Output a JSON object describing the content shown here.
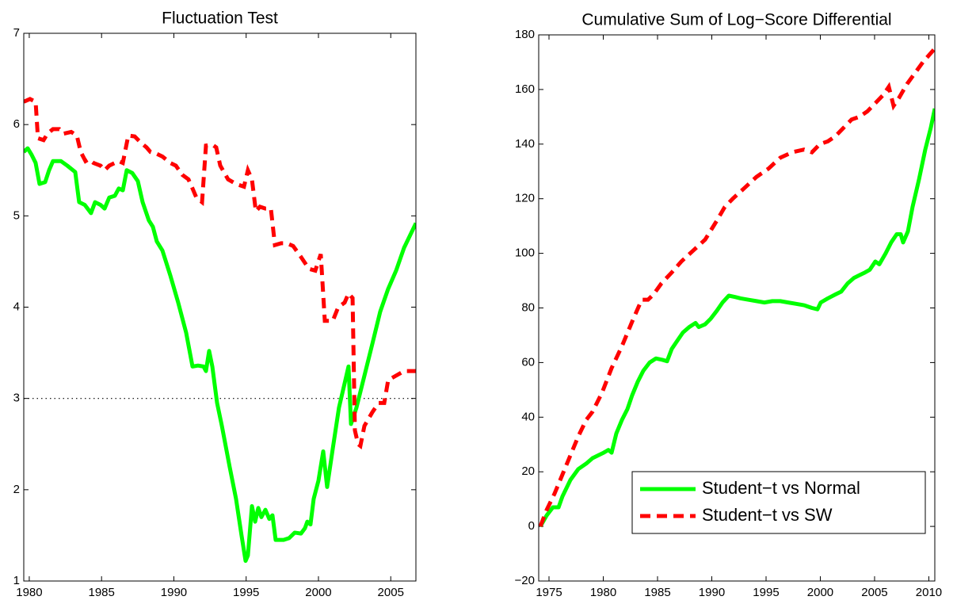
{
  "chart_data": [
    {
      "type": "line",
      "title": "Fluctuation Test",
      "xlim": [
        1979.62,
        2006.74
      ],
      "xticks": [
        1980,
        1985,
        1990,
        1995,
        2000,
        2005
      ],
      "ylim": [
        1,
        7
      ],
      "yticks": [
        1,
        2,
        3,
        4,
        5,
        6,
        7
      ],
      "hline": 3,
      "series": [
        {
          "name": "Student−t vs Normal",
          "color": "#00ff00",
          "style": "solid",
          "x": [
            1979.62,
            1979.89,
            1980.16,
            1980.44,
            1980.71,
            1981.1,
            1981.37,
            1981.64,
            1982.19,
            1982.63,
            1983.18,
            1983.45,
            1983.84,
            1984.27,
            1984.55,
            1984.93,
            1985.21,
            1985.53,
            1985.92,
            1986.19,
            1986.47,
            1986.74,
            1987.12,
            1987.51,
            1987.84,
            1988.27,
            1988.55,
            1988.82,
            1989.21,
            1989.75,
            1990.3,
            1990.85,
            1991.29,
            1991.67,
            1992.05,
            1992.22,
            1992.44,
            1992.66,
            1992.99,
            1993.32,
            1993.86,
            1994.3,
            1994.68,
            1994.96,
            1995.12,
            1995.4,
            1995.62,
            1995.84,
            1996.05,
            1996.33,
            1996.6,
            1996.82,
            1997.04,
            1997.59,
            1997.97,
            1998.36,
            1998.79,
            1999.07,
            1999.23,
            1999.45,
            1999.67,
            2000.0,
            2000.33,
            2000.6,
            2000.99,
            2001.42,
            2001.86,
            2002.08,
            2002.25,
            2002.63,
            2003.18,
            2003.73,
            2004.27,
            2004.82,
            2005.37,
            2005.92,
            2006.74
          ],
          "values": [
            5.7,
            5.74,
            5.67,
            5.58,
            5.35,
            5.37,
            5.5,
            5.6,
            5.6,
            5.55,
            5.48,
            5.15,
            5.12,
            5.03,
            5.15,
            5.12,
            5.08,
            5.2,
            5.22,
            5.3,
            5.28,
            5.5,
            5.47,
            5.38,
            5.15,
            4.95,
            4.88,
            4.72,
            4.62,
            4.35,
            4.05,
            3.72,
            3.35,
            3.36,
            3.35,
            3.3,
            3.52,
            3.35,
            2.95,
            2.7,
            2.25,
            1.9,
            1.5,
            1.22,
            1.28,
            1.82,
            1.65,
            1.8,
            1.7,
            1.78,
            1.68,
            1.72,
            1.45,
            1.45,
            1.47,
            1.53,
            1.52,
            1.58,
            1.65,
            1.62,
            1.9,
            2.1,
            2.42,
            2.03,
            2.45,
            2.9,
            3.2,
            3.35,
            2.72,
            2.9,
            3.25,
            3.6,
            3.95,
            4.2,
            4.4,
            4.65,
            4.92
          ]
        },
        {
          "name": "Student−t vs SW",
          "color": "#ff0000",
          "style": "dashed",
          "x": [
            1979.62,
            1980.05,
            1980.44,
            1980.6,
            1980.99,
            1981.26,
            1981.64,
            1982.08,
            1982.36,
            1982.9,
            1983.29,
            1983.56,
            1983.89,
            1984.11,
            1984.44,
            1984.93,
            1985.21,
            1985.53,
            1985.92,
            1986.19,
            1986.47,
            1986.85,
            1987.29,
            1987.73,
            1988.11,
            1988.38,
            1988.82,
            1989.21,
            1989.75,
            1990.14,
            1990.58,
            1991.01,
            1991.29,
            1991.56,
            1991.95,
            1992.22,
            1992.66,
            1992.93,
            1993.21,
            1993.75,
            1994.3,
            1994.85,
            1995.12,
            1995.4,
            1995.67,
            1995.95,
            1996.33,
            1996.71,
            1996.99,
            1997.42,
            1997.81,
            1998.25,
            1998.79,
            1999.34,
            1999.78,
            2000.16,
            2000.44,
            2000.99,
            2001.37,
            2001.81,
            2002.08,
            2002.36,
            2002.52,
            2002.74,
            2002.9,
            2003.18,
            2003.73,
            2004.16,
            2004.55,
            2004.82,
            2005.37,
            2005.92,
            2006.74
          ],
          "values": [
            6.25,
            6.28,
            6.25,
            5.85,
            5.83,
            5.9,
            5.95,
            5.95,
            5.9,
            5.92,
            5.88,
            5.7,
            5.6,
            5.62,
            5.58,
            5.55,
            5.5,
            5.55,
            5.58,
            5.6,
            5.58,
            5.88,
            5.87,
            5.8,
            5.75,
            5.7,
            5.68,
            5.65,
            5.58,
            5.55,
            5.45,
            5.4,
            5.3,
            5.2,
            5.15,
            5.77,
            5.78,
            5.75,
            5.55,
            5.4,
            5.35,
            5.32,
            5.5,
            5.4,
            5.05,
            5.1,
            5.08,
            5.08,
            4.68,
            4.7,
            4.7,
            4.67,
            4.55,
            4.42,
            4.4,
            4.58,
            3.85,
            3.85,
            4.0,
            4.05,
            4.15,
            4.1,
            2.65,
            2.5,
            2.48,
            2.7,
            2.85,
            2.95,
            2.95,
            3.2,
            3.25,
            3.3,
            3.3
          ]
        }
      ]
    },
    {
      "type": "line",
      "title": "Cumulative Sum of Log−Score Differential",
      "xlim": [
        1974.05,
        2010.55
      ],
      "xticks": [
        1975,
        1980,
        1985,
        1990,
        1995,
        2000,
        2005,
        2010
      ],
      "ylim": [
        -20,
        180
      ],
      "yticks": [
        {
          "value": -20,
          "label": "−20"
        },
        0,
        20,
        40,
        60,
        80,
        100,
        120,
        140,
        160,
        180
      ],
      "legend": "lower right",
      "series": [
        {
          "name": "Student−t vs Normal",
          "color": "#00ff00",
          "style": "solid",
          "x": [
            1974.2,
            1974.78,
            1975.36,
            1975.88,
            1976.24,
            1976.97,
            1977.7,
            1978.43,
            1979.01,
            1979.53,
            1980.04,
            1980.47,
            1980.77,
            1981.2,
            1981.72,
            1982.23,
            1982.66,
            1983.18,
            1983.69,
            1984.27,
            1984.85,
            1985.44,
            1985.88,
            1986.31,
            1986.82,
            1987.34,
            1987.92,
            1988.5,
            1988.8,
            1989.38,
            1989.89,
            1990.47,
            1990.99,
            1991.57,
            1992.15,
            1992.66,
            1993.39,
            1994.12,
            1994.85,
            1995.58,
            1996.31,
            1997.04,
            1997.77,
            1998.5,
            1999.23,
            1999.74,
            2000.04,
            2000.69,
            2001.42,
            2001.93,
            2002.52,
            2003.1,
            2003.61,
            2004.12,
            2004.56,
            2005.07,
            2005.44,
            2006.02,
            2006.53,
            2007.04,
            2007.41,
            2007.63,
            2008.07,
            2008.5,
            2009.09,
            2009.67,
            2010.18,
            2010.55
          ],
          "values": [
            0,
            4,
            7,
            7,
            11,
            17,
            21,
            23,
            25,
            26,
            27,
            28,
            27,
            34,
            39,
            43,
            48,
            53,
            57,
            60,
            61.5,
            61,
            60.5,
            65,
            68,
            71,
            73,
            74.5,
            73,
            74,
            76,
            79,
            82,
            84.5,
            84,
            83.5,
            83,
            82.5,
            82,
            82.5,
            82.5,
            82,
            81.5,
            81,
            80,
            79.5,
            82,
            83.5,
            85,
            86,
            89,
            91,
            92,
            93,
            94,
            97,
            96,
            100,
            104,
            107,
            107,
            104,
            108,
            117,
            127,
            138,
            146,
            153
          ]
        },
        {
          "name": "Student−t vs SW",
          "color": "#ff0000",
          "style": "dashed",
          "x": [
            1974.2,
            1974.78,
            1975.51,
            1976.24,
            1976.97,
            1977.7,
            1978.43,
            1979.01,
            1979.89,
            1980.77,
            1981.72,
            1982.66,
            1983.54,
            1984.12,
            1984.64,
            1985.36,
            1986.31,
            1987.19,
            1988.28,
            1989.38,
            1990.47,
            1991.2,
            1991.93,
            1993.03,
            1994.12,
            1995.22,
            1996.31,
            1997.41,
            1998.5,
            1999.23,
            1999.96,
            2000.69,
            2001.42,
            2002.15,
            2002.88,
            2003.61,
            2004.34,
            2005.07,
            2005.8,
            2006.31,
            2006.75,
            2007.26,
            2007.99,
            2008.72,
            2009.45,
            2010.55
          ],
          "values": [
            0,
            6,
            12,
            19,
            26,
            33,
            39,
            42,
            49,
            58,
            66,
            75,
            83,
            83,
            85,
            89,
            93,
            97,
            101,
            105,
            112,
            117,
            120,
            124,
            128,
            131,
            135,
            137,
            138,
            137,
            140,
            141,
            143,
            146,
            149,
            150,
            152,
            155,
            158,
            161,
            154,
            157,
            162,
            166,
            170,
            175
          ]
        }
      ]
    }
  ]
}
